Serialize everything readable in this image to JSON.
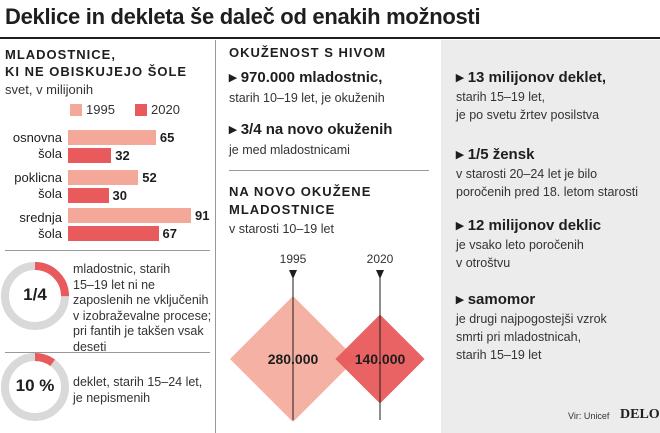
{
  "title": "Deklice in dekleta še daleč od enakih možnosti",
  "left": {
    "heading_line1": "MLADOSTNICE,",
    "heading_line2": "KI NE OBISKUJEJO ŠOLE",
    "subheading": "svet, v milijonih"
  },
  "middle": {
    "heading": "OKUŽENOST S HIVOM",
    "fact1_head": "970.000 mladostnic,",
    "fact1_text": "starih 10–19 let, je okuženih",
    "fact2_head": "3/4 na novo okuženih",
    "fact2_text": "je med mladostnicami",
    "new_heading_line1": "NA NOVO OKUŽENE",
    "new_heading_line2": "MLADOSTNICE",
    "new_sub": "v starosti 10–19 let"
  },
  "donuts": [
    {
      "label": "1/4",
      "fraction": 0.25,
      "text": [
        "mladostnic, starih",
        "15–19 let ni ne",
        "zaposlenih ne vključenih",
        "v izobraževalne procese;",
        "pri fantih je takšen vsak",
        "deseti"
      ]
    },
    {
      "label": "10 %",
      "fraction": 0.1,
      "text": [
        "deklet, starih 15–24 let,",
        "je nepismenih"
      ]
    }
  ],
  "right": [
    {
      "head": "13 milijonov deklet,",
      "lines": [
        "starih 15–19 let,",
        "je po svetu žrtev posilstva"
      ]
    },
    {
      "head": "1/5 žensk",
      "lines": [
        "v starosti 20–24 let je bilo",
        "poročenih pred 18. letom starosti"
      ]
    },
    {
      "head": "12 milijonov deklic",
      "lines": [
        "je vsako leto poročenih",
        "v otroštvu"
      ]
    },
    {
      "head": "samomor",
      "lines": [
        "je drugi najpogostejši vzrok",
        "smrti pri mladostnicah,",
        "starih 15–19 let"
      ]
    }
  ],
  "source": "Vir: Unicef",
  "brand": "DELO",
  "colors": {
    "c1995": "#f4a89a",
    "c2020": "#e85a5c",
    "diamond1995": "#f4a89a",
    "diamond2020": "#e85a5c",
    "donut_fill": "#e85a5c",
    "donut_track": "#d9d9d9",
    "panel": "#ececec"
  },
  "chart_data": [
    {
      "type": "bar",
      "orientation": "horizontal",
      "categories": [
        "osnovna šola",
        "poklicna šola",
        "srednja šola"
      ],
      "series": [
        {
          "name": "1995",
          "values": [
            65,
            52,
            91
          ]
        },
        {
          "name": "2020",
          "values": [
            32,
            30,
            67
          ]
        }
      ],
      "legend": "top"
    },
    {
      "type": "area",
      "x": [
        "1995",
        "2020"
      ],
      "values": [
        280000,
        140000
      ],
      "value_labels": [
        "280.000",
        "140.000"
      ]
    }
  ]
}
